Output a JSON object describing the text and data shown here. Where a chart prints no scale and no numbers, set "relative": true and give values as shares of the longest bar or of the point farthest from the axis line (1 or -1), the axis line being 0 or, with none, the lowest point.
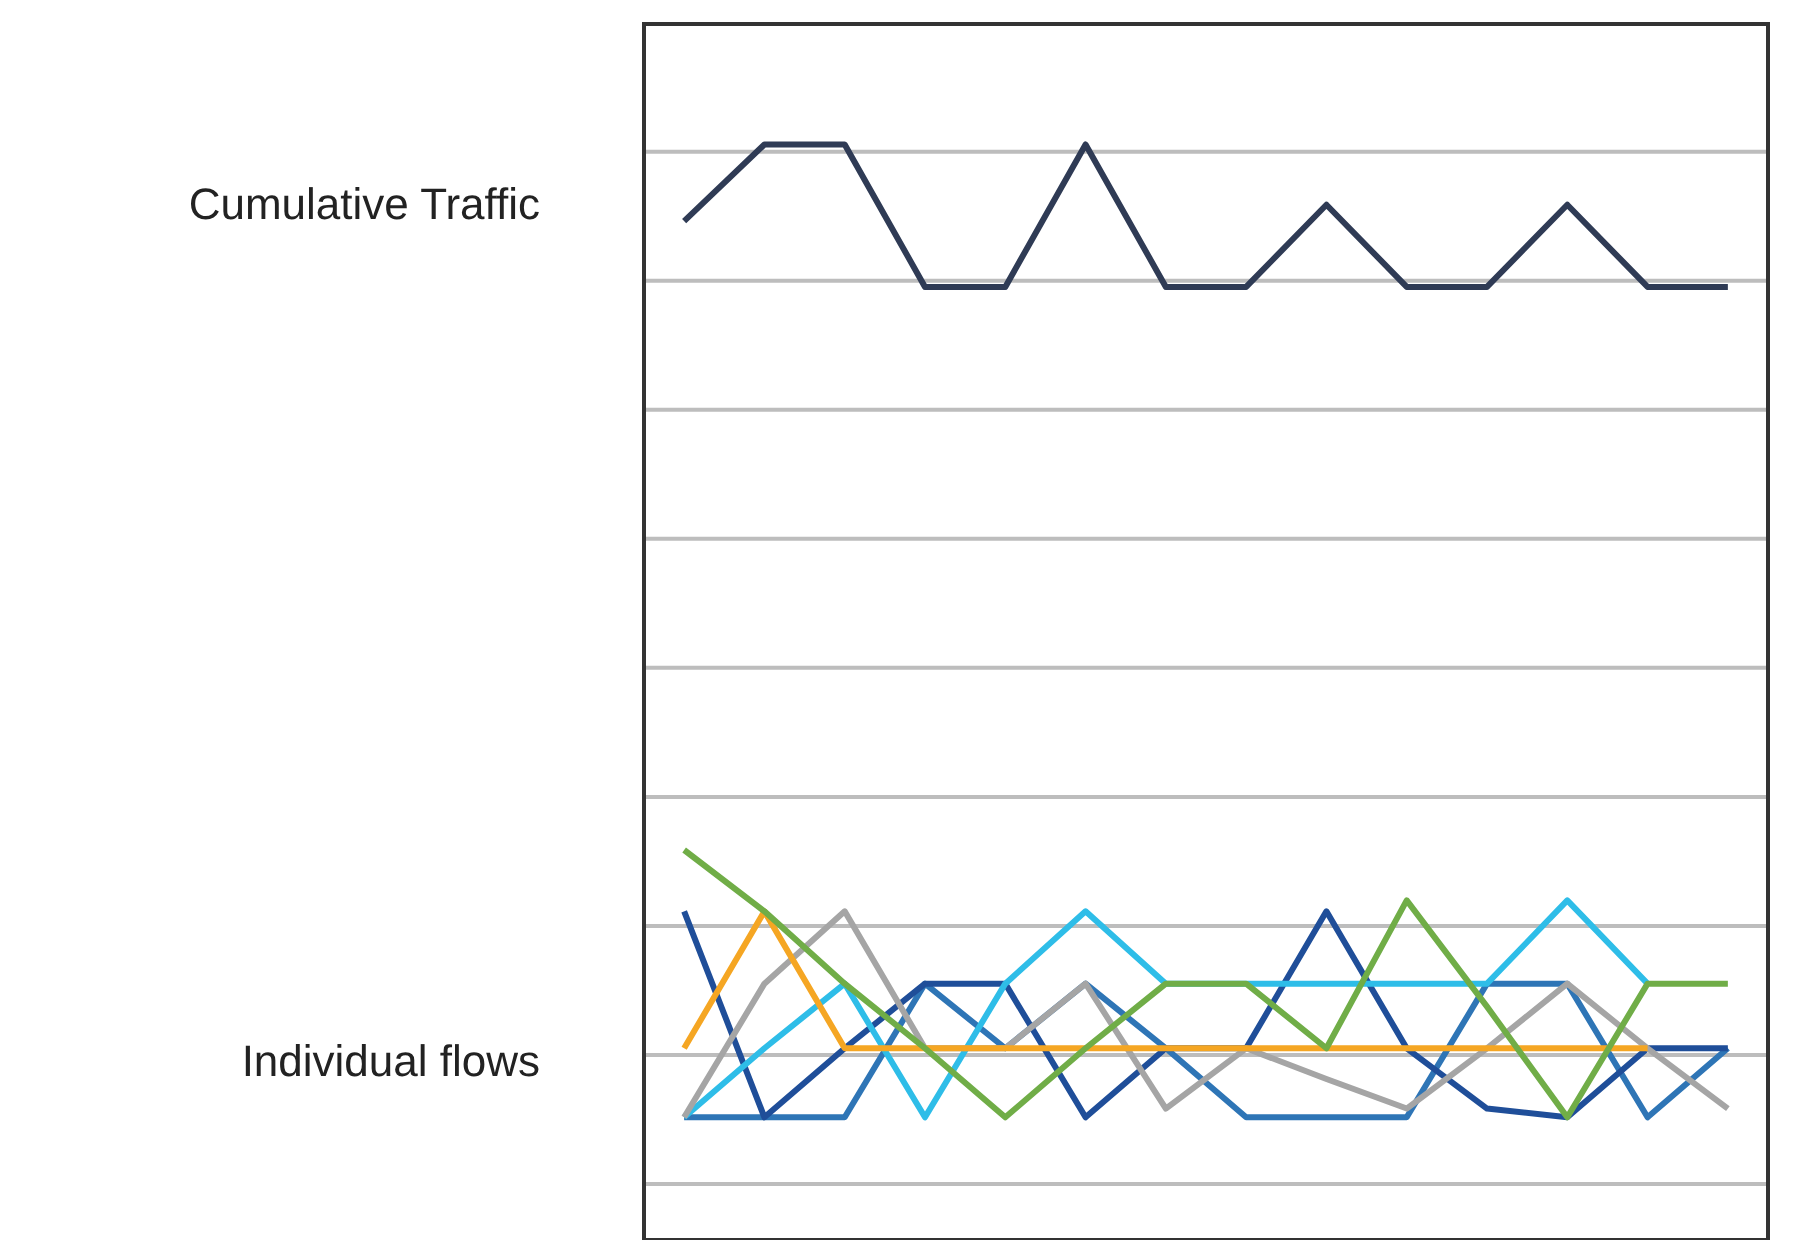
{
  "chart_data": {
    "type": "line",
    "relative": true,
    "grid": true,
    "categories": [
      null,
      null,
      null,
      null,
      null,
      null,
      null,
      null,
      null,
      null,
      null,
      null,
      null,
      null
    ],
    "series": [
      {
        "color": "#2f3b55",
        "values": [
          0.93,
          1,
          1,
          0.87,
          0.87,
          1,
          0.87,
          0.87,
          0.945,
          0.87,
          0.87,
          0.945,
          0.87,
          0.87
        ]
      },
      {
        "color": "#70ad47",
        "values": [
          0.356,
          0.3,
          0.234,
          0.175,
          0.112,
          0.175,
          0.234,
          0.234,
          0.175,
          0.31,
          0.213,
          0.112,
          0.234,
          0.234
        ]
      },
      {
        "color": "#f5a623",
        "values": [
          0.175,
          0.3,
          0.175,
          0.175,
          0.175,
          0.175,
          0.175,
          0.175,
          0.175,
          0.175,
          0.175,
          0.175,
          0.175,
          null
        ]
      },
      {
        "color": "#a5a5a5",
        "values": [
          0.112,
          0.234,
          0.3,
          0.175,
          0.175,
          0.234,
          0.12,
          0.175,
          0.147,
          0.12,
          0.175,
          0.234,
          0.175,
          0.12
        ]
      },
      {
        "color": "#2ebde8",
        "values": [
          0.112,
          0.175,
          0.234,
          0.112,
          0.234,
          0.3,
          0.234,
          0.234,
          0.234,
          0.234,
          0.234,
          0.31,
          0.234,
          null
        ]
      },
      {
        "color": "#1f4e99",
        "values": [
          0.3,
          0.112,
          0.175,
          0.234,
          0.234,
          0.112,
          0.175,
          0.175,
          0.3,
          0.175,
          0.12,
          0.112,
          0.175,
          0.175
        ]
      },
      {
        "color": "#2e75b6",
        "values": [
          0.112,
          0.112,
          0.112,
          0.234,
          0.175,
          0.234,
          0.175,
          0.112,
          0.112,
          0.112,
          0.234,
          0.234,
          0.112,
          0.175
        ]
      }
    ],
    "annotations": [
      "Cumulative Traffic",
      "Individual flows"
    ]
  }
}
